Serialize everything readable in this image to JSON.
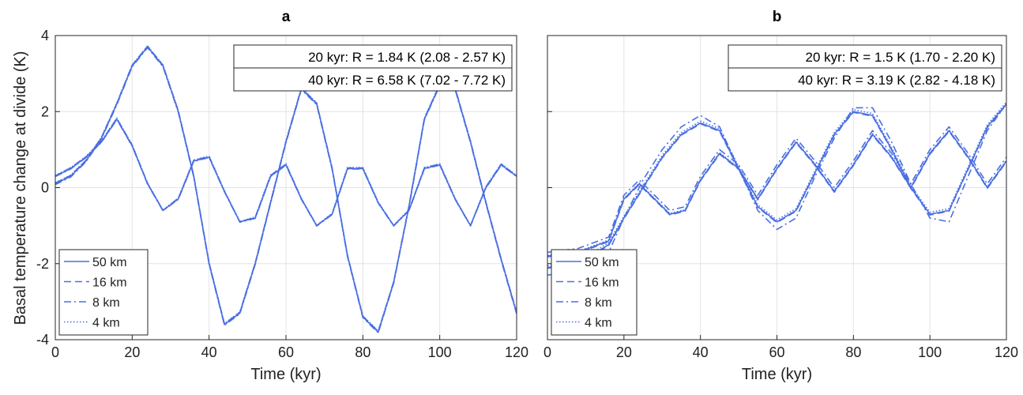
{
  "colors": {
    "series": "#4a6fe3",
    "grid": "#e3e3e3",
    "axis": "#262626",
    "background": "#ffffff"
  },
  "ylabel": "Basal temperature change at divide (K)",
  "chart_data": [
    {
      "type": "line",
      "panel": "a",
      "title": "a",
      "xlabel": "Time (kyr)",
      "ylabel": "Basal temperature change at divide (K)",
      "xlim": [
        0,
        120
      ],
      "ylim": [
        -4,
        4
      ],
      "xticks": [
        0,
        20,
        40,
        60,
        80,
        100,
        120
      ],
      "yticks": [
        -4,
        -2,
        0,
        2,
        4
      ],
      "grid": true,
      "legend": {
        "placement": "bottom-left",
        "entries": [
          "50 km",
          "16 km",
          "8 km",
          "4 km"
        ],
        "styles": [
          "solid",
          "dashed",
          "dashdot",
          "dotted"
        ]
      },
      "annotation": {
        "placement": "top-right",
        "lines": [
          "20 kyr: R = 1.84 K (2.08 - 2.57 K)",
          "40 kyr: R = 6.58 K (7.02 - 7.72 K)"
        ]
      },
      "series": [
        {
          "name": "50 km",
          "group": "20 kyr",
          "x": [
            0,
            4,
            8,
            12,
            16,
            20,
            24,
            28,
            32,
            36,
            40,
            44,
            48,
            52,
            56,
            60,
            64,
            68,
            72,
            76,
            80,
            84,
            88,
            92,
            96,
            100,
            104,
            108,
            112,
            116,
            120
          ],
          "y": [
            0.3,
            0.5,
            0.8,
            1.2,
            1.8,
            1.1,
            0.1,
            -0.6,
            -0.3,
            0.7,
            0.8,
            -0.1,
            -0.9,
            -0.8,
            0.3,
            0.6,
            -0.3,
            -1.0,
            -0.7,
            0.5,
            0.5,
            -0.4,
            -1.0,
            -0.6,
            0.5,
            0.6,
            -0.3,
            -1.0,
            0.0,
            0.6,
            0.3
          ]
        },
        {
          "name": "16 km",
          "group": "20 kyr",
          "x": [
            0,
            4,
            8,
            12,
            16,
            20,
            24,
            28,
            32,
            36,
            40,
            44,
            48,
            52,
            56,
            60,
            64,
            68,
            72,
            76,
            80,
            84,
            88,
            92,
            96,
            100,
            104,
            108,
            112,
            116,
            120
          ],
          "y": [
            0.31,
            0.52,
            0.81,
            1.22,
            1.82,
            1.12,
            0.11,
            -0.6,
            -0.28,
            0.72,
            0.82,
            -0.09,
            -0.9,
            -0.78,
            0.32,
            0.62,
            -0.29,
            -1.0,
            -0.69,
            0.52,
            0.52,
            -0.39,
            -1.0,
            -0.59,
            0.52,
            0.62,
            -0.29,
            -1.0,
            0.02,
            0.62,
            0.31
          ]
        },
        {
          "name": "8 km",
          "group": "20 kyr",
          "x": [
            0,
            4,
            8,
            12,
            16,
            20,
            24,
            28,
            32,
            36,
            40,
            44,
            48,
            52,
            56,
            60,
            64,
            68,
            72,
            76,
            80,
            84,
            88,
            92,
            96,
            100,
            104,
            108,
            112,
            116,
            120
          ],
          "y": [
            0.29,
            0.49,
            0.79,
            1.19,
            1.79,
            1.09,
            0.09,
            -0.61,
            -0.31,
            0.69,
            0.79,
            -0.11,
            -0.91,
            -0.81,
            0.29,
            0.59,
            -0.31,
            -1.01,
            -0.71,
            0.49,
            0.49,
            -0.41,
            -1.01,
            -0.61,
            0.49,
            0.59,
            -0.31,
            -1.01,
            -0.01,
            0.59,
            0.29
          ]
        },
        {
          "name": "4 km",
          "group": "20 kyr",
          "x": [
            0,
            4,
            8,
            12,
            16,
            20,
            24,
            28,
            32,
            36,
            40,
            44,
            48,
            52,
            56,
            60,
            64,
            68,
            72,
            76,
            80,
            84,
            88,
            92,
            96,
            100,
            104,
            108,
            112,
            116,
            120
          ],
          "y": [
            0.32,
            0.53,
            0.82,
            1.23,
            1.83,
            1.13,
            0.12,
            -0.59,
            -0.27,
            0.73,
            0.83,
            -0.08,
            -0.89,
            -0.77,
            0.33,
            0.63,
            -0.28,
            -0.99,
            -0.68,
            0.53,
            0.53,
            -0.38,
            -0.99,
            -0.58,
            0.53,
            0.63,
            -0.28,
            -0.99,
            0.03,
            0.63,
            0.32
          ]
        },
        {
          "name": "50 km",
          "group": "40 kyr",
          "x": [
            0,
            4,
            8,
            12,
            16,
            20,
            24,
            28,
            32,
            36,
            40,
            44,
            48,
            52,
            56,
            60,
            64,
            68,
            72,
            76,
            80,
            84,
            88,
            92,
            96,
            100,
            104,
            108,
            112,
            116,
            120
          ],
          "y": [
            0.1,
            0.3,
            0.7,
            1.3,
            2.2,
            3.2,
            3.7,
            3.2,
            2.0,
            0.3,
            -2.0,
            -3.6,
            -3.3,
            -2.0,
            -0.4,
            1.2,
            2.6,
            2.2,
            0.5,
            -1.8,
            -3.4,
            -3.8,
            -2.5,
            -0.5,
            1.8,
            2.7,
            2.6,
            1.2,
            -0.4,
            -1.9,
            -3.3
          ]
        },
        {
          "name": "16 km",
          "group": "40 kyr",
          "x": [
            0,
            4,
            8,
            12,
            16,
            20,
            24,
            28,
            32,
            36,
            40,
            44,
            48,
            52,
            56,
            60,
            64,
            68,
            72,
            76,
            80,
            84,
            88,
            92,
            96,
            100,
            104,
            108,
            112,
            116,
            120
          ],
          "y": [
            0.12,
            0.32,
            0.72,
            1.32,
            2.22,
            3.22,
            3.72,
            3.22,
            2.02,
            0.32,
            -1.98,
            -3.58,
            -3.28,
            -1.98,
            -0.38,
            1.22,
            2.62,
            2.22,
            0.52,
            -1.78,
            -3.38,
            -3.78,
            -2.48,
            -0.48,
            1.82,
            2.72,
            2.62,
            1.22,
            -0.38,
            -1.88,
            -3.28
          ]
        },
        {
          "name": "8 km",
          "group": "40 kyr",
          "x": [
            0,
            4,
            8,
            12,
            16,
            20,
            24,
            28,
            32,
            36,
            40,
            44,
            48,
            52,
            56,
            60,
            64,
            68,
            72,
            76,
            80,
            84,
            88,
            92,
            96,
            100,
            104,
            108,
            112,
            116,
            120
          ],
          "y": [
            0.08,
            0.28,
            0.68,
            1.28,
            2.18,
            3.18,
            3.68,
            3.18,
            1.98,
            0.28,
            -2.02,
            -3.62,
            -3.32,
            -2.02,
            -0.42,
            1.18,
            2.58,
            2.18,
            0.48,
            -1.82,
            -3.42,
            -3.82,
            -2.52,
            -0.52,
            1.78,
            2.68,
            2.58,
            1.18,
            -0.42,
            -1.92,
            -3.32
          ]
        },
        {
          "name": "4 km",
          "group": "40 kyr",
          "x": [
            0,
            4,
            8,
            12,
            16,
            20,
            24,
            28,
            32,
            36,
            40,
            44,
            48,
            52,
            56,
            60,
            64,
            68,
            72,
            76,
            80,
            84,
            88,
            92,
            96,
            100,
            104,
            108,
            112,
            116,
            120
          ],
          "y": [
            0.13,
            0.33,
            0.73,
            1.33,
            2.23,
            3.23,
            3.73,
            3.23,
            2.03,
            0.33,
            -1.97,
            -3.57,
            -3.27,
            -1.97,
            -0.37,
            1.23,
            2.63,
            2.23,
            0.53,
            -1.77,
            -3.37,
            -3.77,
            -2.47,
            -0.47,
            1.83,
            2.73,
            2.63,
            1.23,
            -0.37,
            -1.87,
            -3.27
          ]
        }
      ]
    },
    {
      "type": "line",
      "panel": "b",
      "title": "b",
      "xlabel": "Time (kyr)",
      "ylabel": "",
      "xlim": [
        0,
        120
      ],
      "ylim": [
        -4,
        4
      ],
      "xticks": [
        0,
        20,
        40,
        60,
        80,
        100,
        120
      ],
      "yticks": [
        -4,
        -2,
        0,
        2,
        4
      ],
      "ytick_labels_shown": false,
      "grid": true,
      "legend": {
        "placement": "bottom-left",
        "entries": [
          "50 km",
          "16 km",
          "8 km",
          "4 km"
        ],
        "styles": [
          "solid",
          "dashed",
          "dashdot",
          "dotted"
        ]
      },
      "annotation": {
        "placement": "top-right",
        "lines": [
          "20 kyr: R = 1.5 K (1.70 - 2.20 K)",
          "40 kyr: R = 3.19 K (2.82 - 4.18 K)"
        ]
      },
      "series": [
        {
          "name": "50 km",
          "group": "20 kyr",
          "x": [
            0,
            8,
            16,
            20,
            24,
            28,
            32,
            36,
            40,
            45,
            50,
            55,
            60,
            65,
            70,
            75,
            80,
            85,
            90,
            95,
            100,
            105,
            110,
            115,
            120
          ],
          "y": [
            -1.8,
            -1.7,
            -1.4,
            -0.3,
            0.1,
            -0.3,
            -0.7,
            -0.6,
            0.2,
            0.9,
            0.5,
            -0.3,
            0.5,
            1.2,
            0.6,
            -0.1,
            0.6,
            1.4,
            0.8,
            0.0,
            0.9,
            1.5,
            0.8,
            0.0,
            0.7
          ]
        },
        {
          "name": "16 km",
          "group": "20 kyr",
          "x": [
            0,
            8,
            16,
            20,
            24,
            28,
            32,
            36,
            40,
            45,
            50,
            55,
            60,
            65,
            70,
            75,
            80,
            85,
            90,
            95,
            100,
            105,
            110,
            115,
            120
          ],
          "y": [
            -1.82,
            -1.72,
            -1.42,
            -0.32,
            0.08,
            -0.32,
            -0.72,
            -0.62,
            0.18,
            0.88,
            0.48,
            -0.32,
            0.48,
            1.18,
            0.58,
            -0.12,
            0.58,
            1.38,
            0.78,
            -0.02,
            0.88,
            1.48,
            0.78,
            -0.02,
            0.68
          ]
        },
        {
          "name": "8 km",
          "group": "20 kyr",
          "x": [
            0,
            8,
            16,
            20,
            24,
            28,
            32,
            36,
            40,
            45,
            50,
            55,
            60,
            65,
            70,
            75,
            80,
            85,
            90,
            95,
            100,
            105,
            110,
            115,
            120
          ],
          "y": [
            -1.7,
            -1.6,
            -1.3,
            -0.2,
            0.2,
            -0.2,
            -0.6,
            -0.5,
            0.3,
            1.0,
            0.6,
            -0.2,
            0.6,
            1.3,
            0.7,
            0.0,
            0.7,
            1.5,
            0.9,
            0.1,
            1.0,
            1.6,
            0.9,
            0.1,
            0.8
          ]
        },
        {
          "name": "4 km",
          "group": "20 kyr",
          "x": [
            0,
            8,
            16,
            20,
            24,
            28,
            32,
            36,
            40,
            45,
            50,
            55,
            60,
            65,
            70,
            75,
            80,
            85,
            90,
            95,
            100,
            105,
            110,
            115,
            120
          ],
          "y": [
            -1.78,
            -1.68,
            -1.38,
            -0.28,
            0.12,
            -0.28,
            -0.68,
            -0.58,
            0.22,
            0.92,
            0.52,
            -0.28,
            0.52,
            1.22,
            0.62,
            -0.08,
            0.62,
            1.42,
            0.82,
            0.02,
            0.92,
            1.52,
            0.82,
            0.02,
            0.72
          ]
        },
        {
          "name": "50 km",
          "group": "40 kyr",
          "x": [
            0,
            8,
            16,
            20,
            25,
            30,
            35,
            40,
            45,
            50,
            55,
            60,
            65,
            70,
            75,
            80,
            85,
            90,
            95,
            100,
            105,
            110,
            115,
            120
          ],
          "y": [
            -2.1,
            -2.0,
            -1.5,
            -0.8,
            0.0,
            0.8,
            1.4,
            1.7,
            1.5,
            0.5,
            -0.5,
            -0.9,
            -0.6,
            0.4,
            1.4,
            2.0,
            1.9,
            1.0,
            0.0,
            -0.7,
            -0.6,
            0.5,
            1.6,
            2.2
          ]
        },
        {
          "name": "16 km",
          "group": "40 kyr",
          "x": [
            0,
            8,
            16,
            20,
            25,
            30,
            35,
            40,
            45,
            50,
            55,
            60,
            65,
            70,
            75,
            80,
            85,
            90,
            95,
            100,
            105,
            110,
            115,
            120
          ],
          "y": [
            -2.12,
            -2.02,
            -1.52,
            -0.82,
            -0.02,
            0.78,
            1.38,
            1.68,
            1.48,
            0.48,
            -0.52,
            -0.92,
            -0.62,
            0.38,
            1.38,
            1.98,
            1.88,
            0.98,
            -0.02,
            -0.72,
            -0.62,
            0.48,
            1.58,
            2.18
          ]
        },
        {
          "name": "8 km",
          "group": "40 kyr",
          "x": [
            0,
            8,
            16,
            20,
            25,
            30,
            35,
            40,
            45,
            50,
            55,
            60,
            65,
            70,
            75,
            80,
            85,
            90,
            95,
            100,
            105,
            110,
            115,
            120
          ],
          "y": [
            -2.3,
            -2.2,
            -1.7,
            -0.8,
            0.2,
            1.0,
            1.6,
            1.9,
            1.6,
            0.5,
            -0.6,
            -1.1,
            -0.8,
            0.3,
            1.3,
            2.1,
            2.1,
            1.2,
            0.1,
            -0.8,
            -0.9,
            0.3,
            1.5,
            2.2
          ]
        },
        {
          "name": "4 km",
          "group": "40 kyr",
          "x": [
            0,
            8,
            16,
            20,
            25,
            30,
            35,
            40,
            45,
            50,
            55,
            60,
            65,
            70,
            75,
            80,
            85,
            90,
            95,
            100,
            105,
            110,
            115,
            120
          ],
          "y": [
            -2.05,
            -1.95,
            -1.45,
            -0.75,
            0.05,
            0.85,
            1.45,
            1.75,
            1.55,
            0.55,
            -0.45,
            -0.85,
            -0.55,
            0.45,
            1.45,
            2.05,
            1.95,
            1.05,
            0.05,
            -0.65,
            -0.55,
            0.55,
            1.65,
            2.25
          ]
        }
      ]
    }
  ]
}
